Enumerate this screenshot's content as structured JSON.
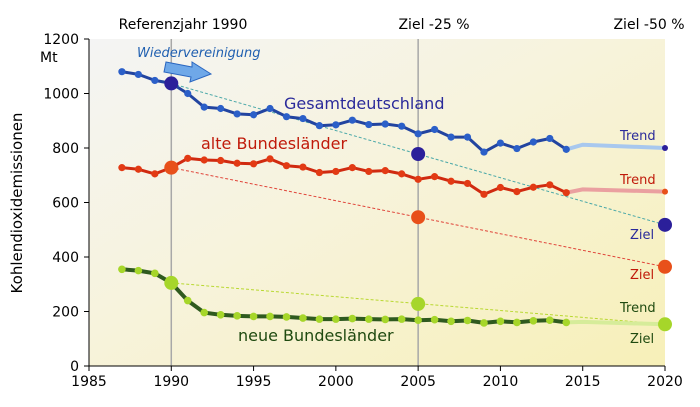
{
  "chart_data": {
    "type": "line",
    "title": "",
    "xlabel": "",
    "ylabel": "Kohlendioxidemissionen",
    "y_unit": "Mt",
    "xlim": [
      1985,
      2020
    ],
    "ylim": [
      0,
      1200
    ],
    "x_ticks": [
      1985,
      1990,
      1995,
      2000,
      2005,
      2010,
      2015,
      2020
    ],
    "y_ticks": [
      0,
      200,
      400,
      600,
      800,
      1000,
      1200
    ],
    "grid": false,
    "reference_lines": [
      {
        "x": 1990,
        "label": "Referenzjahr 1990"
      },
      {
        "x": 2005,
        "label": "Ziel -25 %"
      },
      {
        "x": 2020,
        "label": "Ziel -50 %"
      }
    ],
    "annotation": "Wiedervereinigung",
    "colors": {
      "gesamt": "#2244a0",
      "alt": "#d02a10",
      "neu": "#2f5a1f",
      "neu_marker": "#a6d62a",
      "gesamt_marker": "#2b1f9a",
      "alt_marker": "#e8501a"
    },
    "series": [
      {
        "name": "Gesamtdeutschland",
        "x": [
          1987,
          1988,
          1989,
          1990,
          1991,
          1992,
          1993,
          1994,
          1995,
          1996,
          1997,
          1998,
          1999,
          2000,
          2001,
          2002,
          2003,
          2004,
          2005,
          2006,
          2007,
          2008,
          2009,
          2010,
          2011,
          2012,
          2013,
          2014
        ],
        "values": [
          1080,
          1070,
          1048,
          1037,
          1000,
          950,
          945,
          925,
          922,
          945,
          915,
          908,
          882,
          885,
          902,
          886,
          888,
          880,
          852,
          868,
          840,
          840,
          785,
          818,
          798,
          822,
          835,
          795
        ],
        "trend": {
          "x": [
            2014,
            2015,
            2020
          ],
          "values": [
            795,
            812,
            800
          ],
          "label": "Trend"
        },
        "target_2005": 778,
        "target_2020": 518,
        "target_label": "Ziel"
      },
      {
        "name": "alte Bundesländer",
        "x": [
          1987,
          1988,
          1989,
          1990,
          1991,
          1992,
          1993,
          1994,
          1995,
          1996,
          1997,
          1998,
          1999,
          2000,
          2001,
          2002,
          2003,
          2004,
          2005,
          2006,
          2007,
          2008,
          2009,
          2010,
          2011,
          2012,
          2013,
          2014
        ],
        "values": [
          728,
          722,
          705,
          728,
          762,
          756,
          754,
          744,
          742,
          760,
          735,
          730,
          710,
          714,
          728,
          714,
          717,
          705,
          685,
          695,
          678,
          670,
          630,
          655,
          640,
          656,
          665,
          636
        ],
        "trend": {
          "x": [
            2014,
            2015,
            2020
          ],
          "values": [
            636,
            648,
            640
          ],
          "label": "Trend"
        },
        "target_2005": 546,
        "target_2020": 364,
        "target_label": "Ziel"
      },
      {
        "name": "neue Bundesländer",
        "x": [
          1987,
          1988,
          1989,
          1990,
          1991,
          1992,
          1993,
          1994,
          1995,
          1996,
          1997,
          1998,
          1999,
          2000,
          2001,
          2002,
          2003,
          2004,
          2005,
          2006,
          2007,
          2008,
          2009,
          2010,
          2011,
          2012,
          2013,
          2014
        ],
        "values": [
          355,
          350,
          340,
          305,
          240,
          196,
          188,
          184,
          182,
          182,
          180,
          176,
          172,
          172,
          174,
          172,
          171,
          172,
          168,
          170,
          164,
          167,
          158,
          164,
          160,
          166,
          168,
          160
        ],
        "trend": {
          "x": [
            2014,
            2015,
            2020
          ],
          "values": [
            160,
            162,
            153
          ],
          "label": "Trend"
        },
        "target_2005": 228,
        "target_2020": 153,
        "target_label": "Ziel"
      }
    ]
  }
}
